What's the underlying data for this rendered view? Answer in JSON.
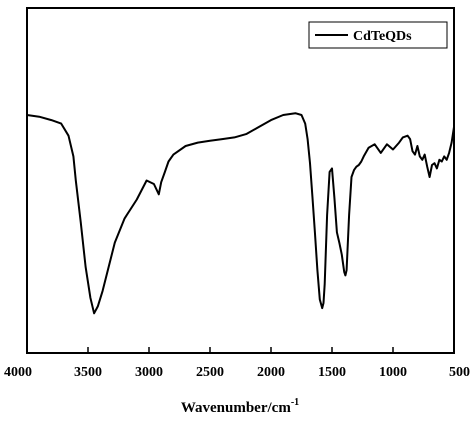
{
  "chart_data": {
    "type": "line",
    "xlabel": "Wavenumber/cm",
    "xlabel_superscript": "-1",
    "ylabel": "",
    "xlim": [
      4000,
      500
    ],
    "ylim": [
      0,
      100
    ],
    "x_reversed": true,
    "y_ticks_shown": false,
    "grid": false,
    "legend_position": "top-right",
    "x_ticks": [
      4000,
      3500,
      3000,
      2500,
      2000,
      1500,
      1000,
      500
    ],
    "series": [
      {
        "name": "CdTeQDs",
        "color": "#000000",
        "x": [
          4000,
          3900,
          3800,
          3720,
          3660,
          3620,
          3600,
          3560,
          3520,
          3480,
          3450,
          3420,
          3380,
          3330,
          3280,
          3200,
          3100,
          3020,
          2960,
          2920,
          2900,
          2870,
          2840,
          2800,
          2700,
          2600,
          2500,
          2400,
          2300,
          2200,
          2100,
          2000,
          1900,
          1800,
          1750,
          1720,
          1700,
          1680,
          1660,
          1640,
          1620,
          1600,
          1580,
          1570,
          1560,
          1540,
          1520,
          1500,
          1480,
          1460,
          1440,
          1420,
          1400,
          1390,
          1380,
          1360,
          1340,
          1320,
          1300,
          1280,
          1260,
          1240,
          1200,
          1150,
          1100,
          1050,
          1000,
          950,
          920,
          880,
          860,
          840,
          820,
          800,
          780,
          760,
          740,
          720,
          700,
          680,
          660,
          640,
          620,
          600,
          580,
          560,
          540,
          520,
          500
        ],
        "y": [
          69.0,
          68.5,
          67.5,
          66.5,
          63.0,
          57.0,
          50.0,
          38.0,
          25.0,
          16.0,
          11.5,
          13.5,
          18.0,
          25.0,
          32.0,
          39.0,
          44.5,
          50.0,
          49.0,
          46.0,
          49.5,
          52.5,
          55.5,
          57.5,
          60.0,
          61.0,
          61.5,
          62.0,
          62.5,
          63.5,
          65.5,
          67.5,
          69.0,
          69.5,
          69.0,
          66.5,
          62.0,
          55.0,
          45.0,
          35.0,
          24.0,
          15.5,
          13.0,
          14.5,
          20.0,
          40.0,
          52.5,
          53.5,
          45.0,
          35.0,
          32.0,
          28.5,
          23.5,
          22.5,
          24.0,
          40.0,
          51.0,
          53.0,
          54.0,
          54.5,
          55.5,
          57.0,
          59.5,
          60.5,
          58.0,
          60.5,
          59.0,
          61.0,
          62.5,
          63.0,
          62.0,
          58.5,
          57.5,
          60.0,
          57.0,
          56.0,
          57.5,
          54.0,
          51.0,
          54.5,
          55.0,
          53.5,
          56.0,
          55.5,
          57.0,
          56.0,
          58.0,
          61.0,
          65.5
        ]
      }
    ]
  }
}
